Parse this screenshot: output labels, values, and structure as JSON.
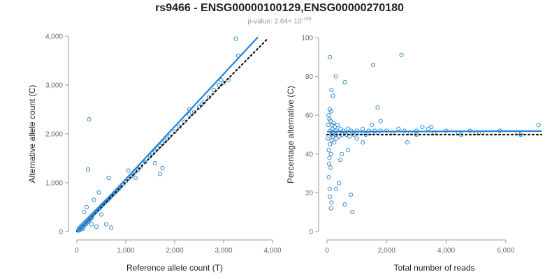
{
  "header": {
    "title": "rs9466 - ENSG00000100129,ENSG00000270180",
    "pvalue_prefix": "p-value: 2.64× 10",
    "pvalue_exponent": "-104"
  },
  "colors": {
    "points": "#3d8fd1",
    "fit": "#1f86e0",
    "reference": "#111111",
    "axis": "#999999"
  },
  "chart_data": [
    {
      "type": "scatter",
      "xlabel": "Reference allele count (T)",
      "ylabel": "Alternative allele count (C)",
      "xlim": [
        0,
        4000
      ],
      "ylim": [
        0,
        4000
      ],
      "xticks": [
        0,
        1000,
        2000,
        3000,
        4000
      ],
      "yticks": [
        0,
        1000,
        2000,
        3000,
        4000
      ],
      "xtick_labels": [
        "0",
        "1,000",
        "2,000",
        "3,000",
        "4,000"
      ],
      "ytick_labels": [
        "0",
        "1,000",
        "2,000",
        "3,000",
        "4,000"
      ],
      "points": [
        [
          30,
          20
        ],
        [
          40,
          60
        ],
        [
          50,
          40
        ],
        [
          60,
          30
        ],
        [
          70,
          90
        ],
        [
          80,
          50
        ],
        [
          90,
          110
        ],
        [
          100,
          70
        ],
        [
          110,
          130
        ],
        [
          120,
          100
        ],
        [
          130,
          60
        ],
        [
          140,
          150
        ],
        [
          150,
          120
        ],
        [
          160,
          180
        ],
        [
          170,
          140
        ],
        [
          180,
          200
        ],
        [
          190,
          160
        ],
        [
          200,
          220
        ],
        [
          210,
          190
        ],
        [
          220,
          240
        ],
        [
          230,
          210
        ],
        [
          240,
          260
        ],
        [
          250,
          230
        ],
        [
          260,
          280
        ],
        [
          270,
          250
        ],
        [
          280,
          300
        ],
        [
          290,
          270
        ],
        [
          300,
          320
        ],
        [
          310,
          290
        ],
        [
          320,
          340
        ],
        [
          340,
          360
        ],
        [
          360,
          380
        ],
        [
          380,
          400
        ],
        [
          400,
          420
        ],
        [
          420,
          440
        ],
        [
          440,
          460
        ],
        [
          460,
          470
        ],
        [
          480,
          500
        ],
        [
          500,
          520
        ],
        [
          520,
          540
        ],
        [
          540,
          560
        ],
        [
          560,
          580
        ],
        [
          580,
          600
        ],
        [
          600,
          620
        ],
        [
          620,
          640
        ],
        [
          640,
          650
        ],
        [
          660,
          680
        ],
        [
          680,
          700
        ],
        [
          700,
          720
        ],
        [
          720,
          740
        ],
        [
          750,
          770
        ],
        [
          780,
          800
        ],
        [
          800,
          820
        ],
        [
          830,
          850
        ],
        [
          860,
          880
        ],
        [
          900,
          920
        ],
        [
          950,
          970
        ],
        [
          1000,
          1030
        ],
        [
          1050,
          1080
        ],
        [
          1100,
          1120
        ],
        [
          1150,
          1180
        ],
        [
          1200,
          1230
        ],
        [
          1250,
          1270
        ],
        [
          1300,
          1330
        ],
        [
          1400,
          1420
        ],
        [
          1500,
          1540
        ],
        [
          1550,
          1600
        ],
        [
          1600,
          1640
        ],
        [
          1650,
          1700
        ],
        [
          1700,
          1750
        ],
        [
          1750,
          1800
        ],
        [
          1800,
          1850
        ],
        [
          1850,
          1900
        ],
        [
          1900,
          1950
        ],
        [
          2000,
          2050
        ],
        [
          2100,
          2150
        ],
        [
          2200,
          2250
        ],
        [
          2300,
          2400
        ],
        [
          2400,
          2450
        ],
        [
          2500,
          2550
        ],
        [
          2600,
          2650
        ],
        [
          2700,
          2750
        ],
        [
          2800,
          2900
        ],
        [
          2900,
          3000
        ],
        [
          3000,
          3050
        ],
        [
          3100,
          3100
        ],
        [
          3300,
          3600
        ],
        [
          3250,
          3950
        ],
        [
          200,
          500
        ],
        [
          300,
          150
        ],
        [
          400,
          100
        ],
        [
          600,
          150
        ],
        [
          700,
          80
        ],
        [
          250,
          2300
        ],
        [
          230,
          1270
        ],
        [
          650,
          1100
        ],
        [
          1700,
          1180
        ],
        [
          1750,
          1300
        ],
        [
          1600,
          1400
        ],
        [
          350,
          650
        ],
        [
          450,
          800
        ],
        [
          500,
          350
        ],
        [
          150,
          400
        ],
        [
          1050,
          1250
        ],
        [
          1200,
          1100
        ],
        [
          2300,
          2500
        ],
        [
          2550,
          2600
        ],
        [
          2950,
          3100
        ]
      ],
      "fit_line": [
        [
          0,
          0
        ],
        [
          3700,
          3980
        ]
      ],
      "reference_line": [
        [
          0,
          0
        ],
        [
          3900,
          3950
        ]
      ]
    },
    {
      "type": "scatter",
      "xlabel": "Total number of reads",
      "ylabel": "Percentage alternative (C)",
      "xlim": [
        0,
        7200
      ],
      "ylim": [
        0,
        100
      ],
      "xticks": [
        0,
        2000,
        4000,
        6000
      ],
      "yticks": [
        0,
        20,
        40,
        60,
        80,
        100
      ],
      "xtick_labels": [
        "0",
        "2,000",
        "4,000",
        "6,000"
      ],
      "ytick_labels": [
        "0",
        "20",
        "40",
        "60",
        "80",
        "100"
      ],
      "points": [
        [
          30,
          48
        ],
        [
          40,
          55
        ],
        [
          50,
          60
        ],
        [
          60,
          42
        ],
        [
          70,
          35
        ],
        [
          80,
          58
        ],
        [
          90,
          63
        ],
        [
          100,
          45
        ],
        [
          110,
          52
        ],
        [
          120,
          57
        ],
        [
          130,
          40
        ],
        [
          140,
          62
        ],
        [
          150,
          50
        ],
        [
          160,
          47
        ],
        [
          170,
          55
        ],
        [
          180,
          53
        ],
        [
          190,
          49
        ],
        [
          200,
          51
        ],
        [
          220,
          56
        ],
        [
          240,
          46
        ],
        [
          260,
          54
        ],
        [
          280,
          50
        ],
        [
          300,
          52
        ],
        [
          320,
          48
        ],
        [
          350,
          55
        ],
        [
          380,
          51
        ],
        [
          400,
          49
        ],
        [
          450,
          53
        ],
        [
          500,
          50
        ],
        [
          550,
          52
        ],
        [
          600,
          51
        ],
        [
          650,
          50
        ],
        [
          700,
          53
        ],
        [
          750,
          49
        ],
        [
          800,
          52
        ],
        [
          850,
          51
        ],
        [
          900,
          50
        ],
        [
          1000,
          52
        ],
        [
          1100,
          51
        ],
        [
          1200,
          53
        ],
        [
          1300,
          50
        ],
        [
          1400,
          52
        ],
        [
          1500,
          51
        ],
        [
          1600,
          52
        ],
        [
          1700,
          51
        ],
        [
          1800,
          52
        ],
        [
          2000,
          52
        ],
        [
          2200,
          51
        ],
        [
          2400,
          53
        ],
        [
          2600,
          52
        ],
        [
          2800,
          51
        ],
        [
          3000,
          52
        ],
        [
          3200,
          54
        ],
        [
          3400,
          53
        ],
        [
          3600,
          51
        ],
        [
          4000,
          52
        ],
        [
          4400,
          51
        ],
        [
          4800,
          52
        ],
        [
          5200,
          51
        ],
        [
          5800,
          52
        ],
        [
          6400,
          51
        ],
        [
          7100,
          55
        ],
        [
          100,
          90
        ],
        [
          300,
          80
        ],
        [
          2500,
          91
        ],
        [
          1550,
          86
        ],
        [
          600,
          77
        ],
        [
          150,
          73
        ],
        [
          200,
          70
        ],
        [
          80,
          38
        ],
        [
          120,
          33
        ],
        [
          60,
          28
        ],
        [
          90,
          22
        ],
        [
          100,
          18
        ],
        [
          150,
          15
        ],
        [
          130,
          12
        ],
        [
          300,
          22
        ],
        [
          400,
          25
        ],
        [
          600,
          14
        ],
        [
          800,
          19
        ],
        [
          850,
          10
        ],
        [
          500,
          40
        ],
        [
          450,
          37
        ],
        [
          700,
          42
        ],
        [
          1000,
          48
        ],
        [
          1200,
          46
        ],
        [
          1500,
          55
        ],
        [
          1700,
          64
        ],
        [
          1800,
          57
        ],
        [
          2700,
          46
        ],
        [
          3000,
          50
        ],
        [
          3500,
          54
        ],
        [
          4500,
          50
        ],
        [
          5000,
          51
        ],
        [
          6500,
          50
        ]
      ],
      "fit_line": [
        [
          0,
          51.5
        ],
        [
          7200,
          51.8
        ]
      ],
      "reference_line": [
        [
          0,
          50
        ],
        [
          7200,
          50
        ]
      ]
    }
  ]
}
